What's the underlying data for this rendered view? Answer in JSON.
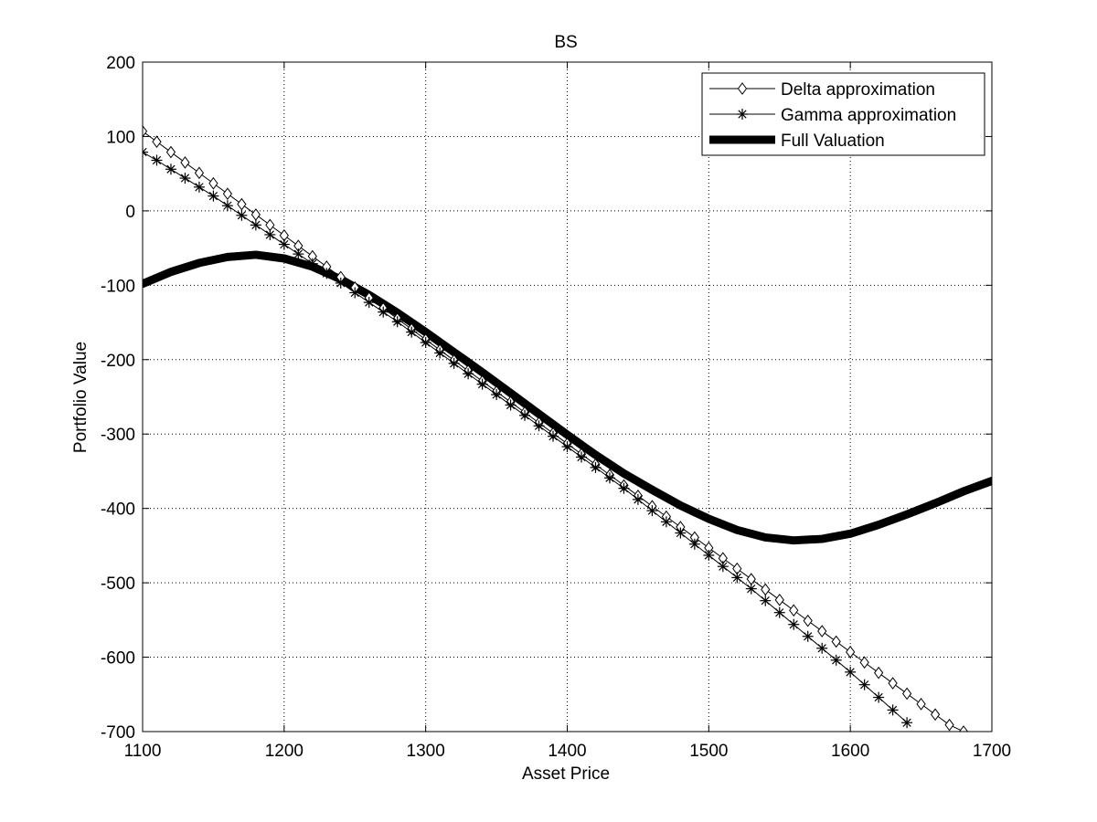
{
  "chart_data": {
    "type": "line",
    "title": "BS",
    "xlabel": "Asset Price",
    "ylabel": "Portfolio Value",
    "xlim": [
      1100,
      1700
    ],
    "ylim": [
      -700,
      200
    ],
    "xticks": [
      1100,
      1200,
      1300,
      1400,
      1500,
      1600,
      1700
    ],
    "yticks": [
      200,
      100,
      0,
      -100,
      -200,
      -300,
      -400,
      -500,
      -600,
      -700
    ],
    "grid": true,
    "legend_position": "top-right",
    "series": [
      {
        "name": "Delta approximation",
        "marker": "diamond",
        "style": "thin",
        "x": [
          1100,
          1110,
          1120,
          1130,
          1140,
          1150,
          1160,
          1170,
          1180,
          1190,
          1200,
          1210,
          1220,
          1230,
          1240,
          1250,
          1260,
          1270,
          1280,
          1290,
          1300,
          1310,
          1320,
          1330,
          1340,
          1350,
          1360,
          1370,
          1380,
          1390,
          1400,
          1410,
          1420,
          1430,
          1440,
          1450,
          1460,
          1470,
          1480,
          1490,
          1500,
          1510,
          1520,
          1530,
          1540,
          1550,
          1560,
          1570,
          1580,
          1590,
          1600,
          1610,
          1620,
          1630,
          1640,
          1650,
          1660,
          1670,
          1680
        ],
        "y": [
          107,
          93,
          79,
          65,
          51,
          37,
          23,
          9,
          -5,
          -19,
          -33,
          -47,
          -61,
          -75,
          -89,
          -103,
          -117,
          -131,
          -145,
          -159,
          -173,
          -187,
          -201,
          -215,
          -229,
          -243,
          -257,
          -271,
          -285,
          -299,
          -313,
          -327,
          -341,
          -355,
          -369,
          -383,
          -397,
          -411,
          -425,
          -439,
          -453,
          -467,
          -481,
          -495,
          -509,
          -523,
          -537,
          -551,
          -565,
          -579,
          -593,
          -607,
          -621,
          -635,
          -649,
          -663,
          -677,
          -691,
          -700
        ]
      },
      {
        "name": "Gamma approximation",
        "marker": "star",
        "style": "thin",
        "x": [
          1100,
          1110,
          1120,
          1130,
          1140,
          1150,
          1160,
          1170,
          1180,
          1190,
          1200,
          1210,
          1220,
          1230,
          1240,
          1250,
          1260,
          1270,
          1280,
          1290,
          1300,
          1310,
          1320,
          1330,
          1340,
          1350,
          1360,
          1370,
          1380,
          1390,
          1400,
          1410,
          1420,
          1430,
          1440,
          1450,
          1460,
          1470,
          1480,
          1490,
          1500,
          1510,
          1520,
          1530,
          1540,
          1550,
          1560,
          1570,
          1580,
          1590,
          1600,
          1610,
          1620,
          1630,
          1640
        ],
        "y": [
          79,
          68,
          56,
          44,
          32,
          20,
          7,
          -6,
          -19,
          -32,
          -45,
          -58,
          -71,
          -84,
          -97,
          -110,
          -123,
          -136,
          -149,
          -163,
          -177,
          -191,
          -205,
          -219,
          -233,
          -247,
          -261,
          -275,
          -289,
          -303,
          -317,
          -331,
          -345,
          -359,
          -373,
          -388,
          -403,
          -418,
          -433,
          -448,
          -463,
          -478,
          -493,
          -508,
          -524,
          -540,
          -556,
          -572,
          -588,
          -604,
          -620,
          -637,
          -654,
          -671,
          -688
        ]
      },
      {
        "name": "Full Valuation",
        "marker": "none",
        "style": "thick",
        "x": [
          1100,
          1120,
          1140,
          1160,
          1180,
          1200,
          1220,
          1240,
          1260,
          1280,
          1300,
          1320,
          1340,
          1360,
          1380,
          1400,
          1420,
          1440,
          1460,
          1480,
          1500,
          1520,
          1540,
          1560,
          1580,
          1600,
          1620,
          1640,
          1660,
          1680,
          1700
        ],
        "y": [
          -98,
          -82,
          -70,
          -62,
          -59,
          -64,
          -75,
          -92,
          -113,
          -137,
          -163,
          -190,
          -217,
          -245,
          -273,
          -301,
          -328,
          -353,
          -375,
          -396,
          -414,
          -429,
          -439,
          -443,
          -441,
          -434,
          -422,
          -408,
          -393,
          -377,
          -363
        ]
      }
    ]
  }
}
